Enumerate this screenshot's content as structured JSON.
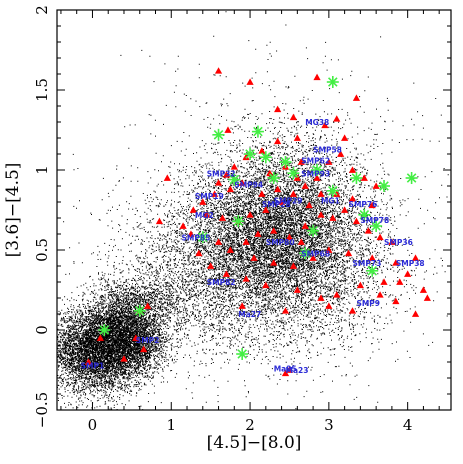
{
  "chart_data": {
    "type": "scatter",
    "title": "",
    "xlabel": "[4.5]−[8.0]",
    "ylabel": "[3.6]−[4.5]",
    "xlim": [
      -0.45,
      4.55
    ],
    "ylim": [
      -0.5,
      2.0
    ],
    "x_ticks": [
      0,
      1,
      2,
      3,
      4
    ],
    "x_tick_labels": [
      "0",
      "1",
      "2",
      "3",
      "4"
    ],
    "y_ticks": [
      -0.5,
      0,
      0.5,
      1,
      1.5,
      2
    ],
    "y_tick_labels": [
      "−0.5",
      "0",
      "0.5",
      "1",
      "1.5",
      "2"
    ],
    "grid": false,
    "colors": {
      "background_field": "#000000",
      "triangles": "#ff0000",
      "stars": "#44ee44",
      "labels": "#2a2ad6"
    },
    "series": [
      {
        "marker": "dot",
        "description_visible": false,
        "clusters": [
          {
            "cx": 0.05,
            "cy": -0.12,
            "sx": 0.28,
            "sy": 0.13,
            "n": 6000
          },
          {
            "cx": 0.45,
            "cy": 0.05,
            "sx": 0.22,
            "sy": 0.12,
            "n": 1800
          },
          {
            "cx": 0.55,
            "cy": -0.1,
            "sx": 0.2,
            "sy": 0.1,
            "n": 1500
          },
          {
            "cx": 0.75,
            "cy": 0.18,
            "sx": 0.35,
            "sy": 0.12,
            "n": 800
          },
          {
            "cx": 2.2,
            "cy": 0.55,
            "sx": 0.55,
            "sy": 0.22,
            "n": 4500
          },
          {
            "cx": 2.5,
            "cy": 0.75,
            "sx": 0.5,
            "sy": 0.25,
            "n": 3000
          },
          {
            "cx": 2.0,
            "cy": 0.4,
            "sx": 0.8,
            "sy": 0.3,
            "n": 2500
          },
          {
            "cx": 2.8,
            "cy": 0.35,
            "sx": 0.6,
            "sy": 0.25,
            "n": 1500
          },
          {
            "cx": 1.4,
            "cy": 0.3,
            "sx": 0.6,
            "sy": 0.25,
            "n": 1200
          },
          {
            "cx": 2.4,
            "cy": 0.9,
            "sx": 0.9,
            "sy": 0.4,
            "n": 900
          }
        ]
      },
      {
        "marker": "triangle",
        "points": [
          [
            1.6,
            1.62
          ],
          [
            2.0,
            1.55
          ],
          [
            2.85,
            1.58
          ],
          [
            1.72,
            1.25
          ],
          [
            2.35,
            1.38
          ],
          [
            2.55,
            1.33
          ],
          [
            2.95,
            1.28
          ],
          [
            3.1,
            1.32
          ],
          [
            3.35,
            1.45
          ],
          [
            3.2,
            1.2
          ],
          [
            2.6,
            1.2
          ],
          [
            2.35,
            1.18
          ],
          [
            2.15,
            1.12
          ],
          [
            1.95,
            1.08
          ],
          [
            1.8,
            1.02
          ],
          [
            1.7,
            0.97
          ],
          [
            1.6,
            0.92
          ],
          [
            1.75,
            0.88
          ],
          [
            1.55,
            0.85
          ],
          [
            1.4,
            0.8
          ],
          [
            1.28,
            0.75
          ],
          [
            1.45,
            0.72
          ],
          [
            1.65,
            0.7
          ],
          [
            1.85,
            0.68
          ],
          [
            2.0,
            0.72
          ],
          [
            2.2,
            0.75
          ],
          [
            2.4,
            0.8
          ],
          [
            2.55,
            0.85
          ],
          [
            2.7,
            0.9
          ],
          [
            2.85,
            0.95
          ],
          [
            3.0,
            1.05
          ],
          [
            3.15,
            1.1
          ],
          [
            3.3,
            1.0
          ],
          [
            3.45,
            0.95
          ],
          [
            3.6,
            0.9
          ],
          [
            2.25,
            0.98
          ],
          [
            2.45,
            1.02
          ],
          [
            2.65,
            1.05
          ],
          [
            2.75,
            0.78
          ],
          [
            2.9,
            0.72
          ],
          [
            3.05,
            0.7
          ],
          [
            3.2,
            0.75
          ],
          [
            3.35,
            0.68
          ],
          [
            3.5,
            0.62
          ],
          [
            3.65,
            0.58
          ],
          [
            3.8,
            0.55
          ],
          [
            2.1,
            0.6
          ],
          [
            2.3,
            0.62
          ],
          [
            2.5,
            0.58
          ],
          [
            2.65,
            0.55
          ],
          [
            1.95,
            0.55
          ],
          [
            1.75,
            0.5
          ],
          [
            2.05,
            0.45
          ],
          [
            2.3,
            0.42
          ],
          [
            2.55,
            0.4
          ],
          [
            2.8,
            0.45
          ],
          [
            3.0,
            0.5
          ],
          [
            3.25,
            0.48
          ],
          [
            3.55,
            0.45
          ],
          [
            3.85,
            0.42
          ],
          [
            4.0,
            0.35
          ],
          [
            4.1,
            0.45
          ],
          [
            4.2,
            0.25
          ],
          [
            3.9,
            0.3
          ],
          [
            3.7,
            0.3
          ],
          [
            3.4,
            0.28
          ],
          [
            3.1,
            0.22
          ],
          [
            2.9,
            0.2
          ],
          [
            2.6,
            0.25
          ],
          [
            2.2,
            0.28
          ],
          [
            1.95,
            0.32
          ],
          [
            1.7,
            0.35
          ],
          [
            1.5,
            0.4
          ],
          [
            1.35,
            0.48
          ],
          [
            1.25,
            0.6
          ],
          [
            1.15,
            0.65
          ],
          [
            0.95,
            0.95
          ],
          [
            0.85,
            0.68
          ],
          [
            1.9,
            0.15
          ],
          [
            2.45,
            0.12
          ],
          [
            3.0,
            0.15
          ],
          [
            3.3,
            0.12
          ],
          [
            3.65,
            0.22
          ],
          [
            3.85,
            0.18
          ],
          [
            4.1,
            0.1
          ],
          [
            4.25,
            0.2
          ],
          [
            0.7,
            0.15
          ],
          [
            0.6,
            0.12
          ],
          [
            0.55,
            -0.05
          ],
          [
            0.65,
            -0.12
          ],
          [
            0.4,
            -0.18
          ],
          [
            0.1,
            -0.05
          ],
          [
            -0.05,
            -0.2
          ],
          [
            2.5,
            -0.25
          ],
          [
            2.45,
            -0.27
          ],
          [
            1.6,
            0.55
          ],
          [
            2.7,
            0.65
          ],
          [
            3.1,
            0.85
          ],
          [
            2.35,
            0.88
          ],
          [
            1.9,
            0.92
          ],
          [
            2.15,
            0.85
          ],
          [
            2.6,
            0.95
          ],
          [
            2.9,
            0.85
          ],
          [
            3.3,
            0.82
          ],
          [
            3.55,
            0.78
          ]
        ]
      },
      {
        "marker": "star",
        "points": [
          [
            3.05,
            1.55
          ],
          [
            1.6,
            1.22
          ],
          [
            2.1,
            1.24
          ],
          [
            2.0,
            1.1
          ],
          [
            2.2,
            1.08
          ],
          [
            2.45,
            1.05
          ],
          [
            1.8,
            0.94
          ],
          [
            2.3,
            0.95
          ],
          [
            2.55,
            0.98
          ],
          [
            2.85,
            1.0
          ],
          [
            3.05,
            0.87
          ],
          [
            3.35,
            0.95
          ],
          [
            3.7,
            0.9
          ],
          [
            4.05,
            0.95
          ],
          [
            3.45,
            0.72
          ],
          [
            3.6,
            0.65
          ],
          [
            2.8,
            0.62
          ],
          [
            1.4,
            0.58
          ],
          [
            1.85,
            0.68
          ],
          [
            2.7,
            0.48
          ],
          [
            3.55,
            0.37
          ],
          [
            1.9,
            -0.15
          ],
          [
            0.6,
            0.12
          ],
          [
            0.15,
            0.0
          ]
        ]
      }
    ],
    "annotations": [
      {
        "text": "MG38",
        "x": 2.7,
        "y": 1.28
      },
      {
        "text": "SMP58",
        "x": 2.8,
        "y": 1.11
      },
      {
        "text": "SMP62",
        "x": 2.65,
        "y": 1.04
      },
      {
        "text": "SMP93",
        "x": 2.65,
        "y": 0.96
      },
      {
        "text": "SMP32",
        "x": 1.45,
        "y": 0.96
      },
      {
        "text": "SMP94",
        "x": 1.8,
        "y": 0.89
      },
      {
        "text": "SMP19",
        "x": 1.3,
        "y": 0.82
      },
      {
        "text": "MG2",
        "x": 1.3,
        "y": 0.7
      },
      {
        "text": "SMP28",
        "x": 2.15,
        "y": 0.77
      },
      {
        "text": "SMP29",
        "x": 2.3,
        "y": 0.79
      },
      {
        "text": "MG1",
        "x": 2.9,
        "y": 0.79
      },
      {
        "text": "SMP76",
        "x": 3.25,
        "y": 0.77
      },
      {
        "text": "SMP78",
        "x": 3.4,
        "y": 0.67
      },
      {
        "text": "SMP85",
        "x": 1.13,
        "y": 0.56
      },
      {
        "text": "SMP80",
        "x": 2.2,
        "y": 0.53
      },
      {
        "text": "SMP36",
        "x": 3.7,
        "y": 0.53
      },
      {
        "text": "SMP68",
        "x": 2.65,
        "y": 0.46
      },
      {
        "text": "SMP73",
        "x": 3.3,
        "y": 0.4
      },
      {
        "text": "SMP38",
        "x": 3.85,
        "y": 0.4
      },
      {
        "text": "SMP82",
        "x": 1.45,
        "y": 0.28
      },
      {
        "text": "SMP9",
        "x": 3.35,
        "y": 0.15
      },
      {
        "text": "Ma27",
        "x": 1.85,
        "y": 0.08
      },
      {
        "text": "SMP2",
        "x": 0.55,
        "y": -0.08
      },
      {
        "text": "SMP1",
        "x": -0.15,
        "y": -0.24
      },
      {
        "text": "Ma25",
        "x": 2.3,
        "y": -0.26
      },
      {
        "text": "Ma23",
        "x": 2.45,
        "y": -0.27
      }
    ]
  }
}
